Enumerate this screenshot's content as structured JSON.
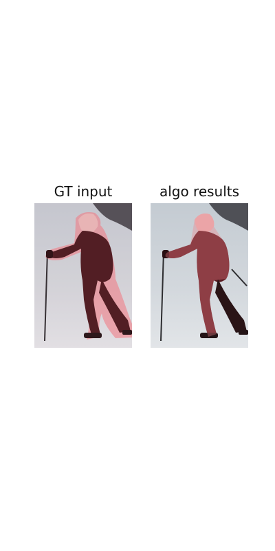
{
  "panels": [
    {
      "title": "GT input",
      "mask_color": "#f07f87"
    },
    {
      "title": "algo results",
      "mask_color": "#f07f87"
    }
  ],
  "colors": {
    "snow": "#cfd5db",
    "dark_trees": "#3a3a3f",
    "subject": "#4a1a1f",
    "mask_fill": "#f07f87"
  }
}
